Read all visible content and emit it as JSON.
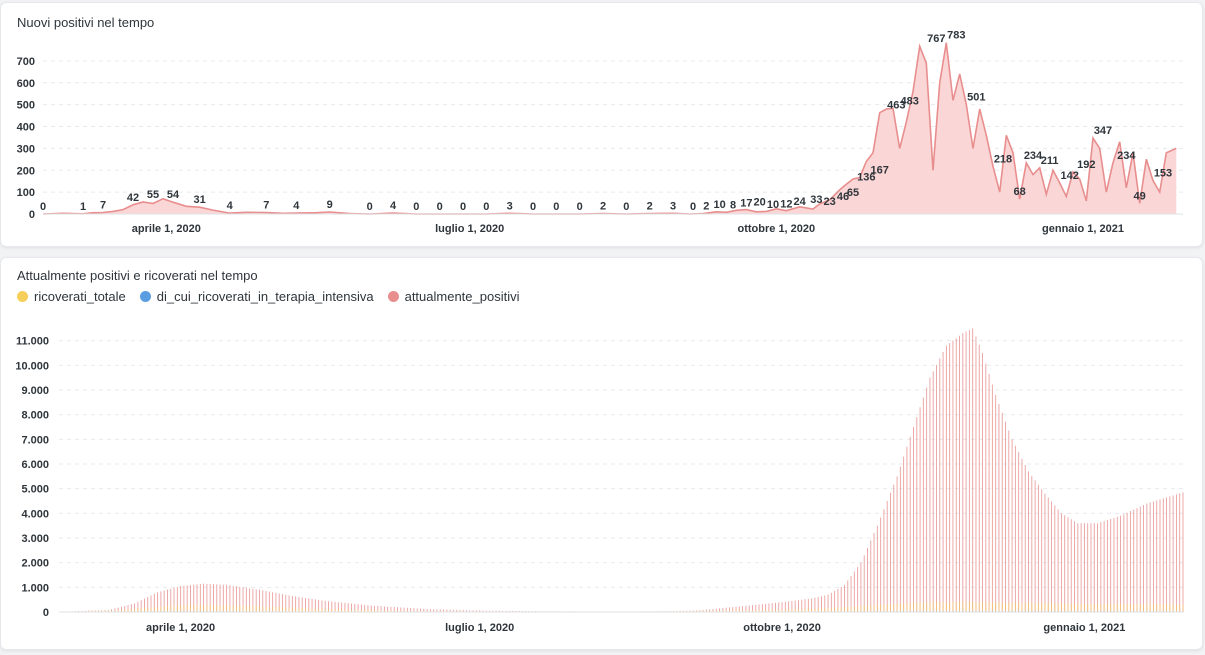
{
  "colors": {
    "positivi_line": "#e88e8e",
    "positivi_fill": "#fad6d6",
    "ricoverati": "#f5cf5a",
    "intensiva": "#5a9de0",
    "attualmente": "#e88e8e"
  },
  "chart_data": [
    {
      "type": "area",
      "title": "Nuovi positivi nel tempo",
      "xlabel": "",
      "ylabel": "",
      "ylim": [
        0,
        800
      ],
      "yticks": [
        0,
        100,
        200,
        300,
        400,
        500,
        600,
        700
      ],
      "xlim": [
        "2020-02-24",
        "2021-01-31"
      ],
      "xticks": [
        {
          "date": "2020-04-01",
          "label": "aprile 1, 2020"
        },
        {
          "date": "2020-07-01",
          "label": "luglio 1, 2020"
        },
        {
          "date": "2020-10-01",
          "label": "ottobre 1, 2020"
        },
        {
          "date": "2021-01-01",
          "label": "gennaio 1, 2021"
        }
      ],
      "series": [
        {
          "points": [
            [
              "2020-02-24",
              0
            ],
            [
              "2020-03-01",
              3
            ],
            [
              "2020-03-07",
              1
            ],
            [
              "2020-03-10",
              6
            ],
            [
              "2020-03-13",
              7
            ],
            [
              "2020-03-16",
              12
            ],
            [
              "2020-03-19",
              20
            ],
            [
              "2020-03-22",
              42
            ],
            [
              "2020-03-25",
              55
            ],
            [
              "2020-03-28",
              48
            ],
            [
              "2020-03-31",
              70
            ],
            [
              "2020-04-03",
              54
            ],
            [
              "2020-04-07",
              35
            ],
            [
              "2020-04-11",
              31
            ],
            [
              "2020-04-15",
              18
            ],
            [
              "2020-04-20",
              4
            ],
            [
              "2020-04-25",
              8
            ],
            [
              "2020-05-01",
              7
            ],
            [
              "2020-05-06",
              3
            ],
            [
              "2020-05-10",
              4
            ],
            [
              "2020-05-16",
              6
            ],
            [
              "2020-05-20",
              9
            ],
            [
              "2020-05-26",
              2
            ],
            [
              "2020-06-01",
              0
            ],
            [
              "2020-06-08",
              4
            ],
            [
              "2020-06-15",
              0
            ],
            [
              "2020-06-22",
              0
            ],
            [
              "2020-06-29",
              0
            ],
            [
              "2020-07-06",
              0
            ],
            [
              "2020-07-13",
              3
            ],
            [
              "2020-07-20",
              0
            ],
            [
              "2020-07-27",
              0
            ],
            [
              "2020-08-03",
              0
            ],
            [
              "2020-08-10",
              2
            ],
            [
              "2020-08-17",
              0
            ],
            [
              "2020-08-24",
              2
            ],
            [
              "2020-08-31",
              3
            ],
            [
              "2020-09-05",
              0
            ],
            [
              "2020-09-09",
              2
            ],
            [
              "2020-09-13",
              10
            ],
            [
              "2020-09-16",
              8
            ],
            [
              "2020-09-19",
              17
            ],
            [
              "2020-09-22",
              20
            ],
            [
              "2020-09-25",
              10
            ],
            [
              "2020-09-28",
              12
            ],
            [
              "2020-10-01",
              24
            ],
            [
              "2020-10-04",
              15
            ],
            [
              "2020-10-08",
              33
            ],
            [
              "2020-10-12",
              23
            ],
            [
              "2020-10-14",
              46
            ],
            [
              "2020-10-17",
              65
            ],
            [
              "2020-10-20",
              110
            ],
            [
              "2020-10-22",
              136
            ],
            [
              "2020-10-24",
              160
            ],
            [
              "2020-10-26",
              167
            ],
            [
              "2020-10-28",
              240
            ],
            [
              "2020-10-30",
              280
            ],
            [
              "2020-11-01",
              463
            ],
            [
              "2020-11-03",
              480
            ],
            [
              "2020-11-05",
              483
            ],
            [
              "2020-11-07",
              300
            ],
            [
              "2020-11-09",
              420
            ],
            [
              "2020-11-11",
              560
            ],
            [
              "2020-11-13",
              767
            ],
            [
              "2020-11-15",
              690
            ],
            [
              "2020-11-17",
              200
            ],
            [
              "2020-11-19",
              600
            ],
            [
              "2020-11-21",
              783
            ],
            [
              "2020-11-23",
              520
            ],
            [
              "2020-11-25",
              640
            ],
            [
              "2020-11-27",
              501
            ],
            [
              "2020-11-29",
              300
            ],
            [
              "2020-12-01",
              480
            ],
            [
              "2020-12-03",
              360
            ],
            [
              "2020-12-05",
              218
            ],
            [
              "2020-12-07",
              100
            ],
            [
              "2020-12-09",
              360
            ],
            [
              "2020-12-11",
              280
            ],
            [
              "2020-12-13",
              68
            ],
            [
              "2020-12-15",
              234
            ],
            [
              "2020-12-17",
              180
            ],
            [
              "2020-12-19",
              211
            ],
            [
              "2020-12-21",
              90
            ],
            [
              "2020-12-23",
              200
            ],
            [
              "2020-12-25",
              142
            ],
            [
              "2020-12-27",
              80
            ],
            [
              "2020-12-29",
              192
            ],
            [
              "2020-12-31",
              160
            ],
            [
              "2021-01-02",
              60
            ],
            [
              "2021-01-04",
              347
            ],
            [
              "2021-01-06",
              300
            ],
            [
              "2021-01-08",
              100
            ],
            [
              "2021-01-10",
              234
            ],
            [
              "2021-01-12",
              330
            ],
            [
              "2021-01-14",
              120
            ],
            [
              "2021-01-16",
              280
            ],
            [
              "2021-01-18",
              49
            ],
            [
              "2021-01-20",
              250
            ],
            [
              "2021-01-22",
              153
            ],
            [
              "2021-01-24",
              100
            ],
            [
              "2021-01-26",
              280
            ],
            [
              "2021-01-29",
              300
            ]
          ]
        }
      ],
      "data_labels": [
        [
          "2020-02-24",
          0,
          "0"
        ],
        [
          "2020-03-07",
          1,
          "1"
        ],
        [
          "2020-03-13",
          7,
          "7"
        ],
        [
          "2020-03-22",
          42,
          "42"
        ],
        [
          "2020-03-28",
          55,
          "55"
        ],
        [
          "2020-04-03",
          54,
          "54"
        ],
        [
          "2020-04-11",
          31,
          "31"
        ],
        [
          "2020-04-20",
          4,
          "4"
        ],
        [
          "2020-05-01",
          7,
          "7"
        ],
        [
          "2020-05-10",
          4,
          "4"
        ],
        [
          "2020-05-20",
          9,
          "9"
        ],
        [
          "2020-06-01",
          0,
          "0"
        ],
        [
          "2020-06-08",
          4,
          "4"
        ],
        [
          "2020-06-15",
          0,
          "0"
        ],
        [
          "2020-06-22",
          0,
          "0"
        ],
        [
          "2020-06-29",
          0,
          "0"
        ],
        [
          "2020-07-06",
          0,
          "0"
        ],
        [
          "2020-07-13",
          3,
          "3"
        ],
        [
          "2020-07-20",
          0,
          "0"
        ],
        [
          "2020-07-27",
          0,
          "0"
        ],
        [
          "2020-08-03",
          0,
          "0"
        ],
        [
          "2020-08-10",
          2,
          "2"
        ],
        [
          "2020-08-17",
          0,
          "0"
        ],
        [
          "2020-08-24",
          2,
          "2"
        ],
        [
          "2020-08-31",
          3,
          "3"
        ],
        [
          "2020-09-06",
          0,
          "0"
        ],
        [
          "2020-09-10",
          2,
          "2"
        ],
        [
          "2020-09-14",
          10,
          "10"
        ],
        [
          "2020-09-18",
          8,
          "8"
        ],
        [
          "2020-09-22",
          17,
          "17"
        ],
        [
          "2020-09-26",
          20,
          "20"
        ],
        [
          "2020-09-30",
          10,
          "10"
        ],
        [
          "2020-10-04",
          12,
          "12"
        ],
        [
          "2020-10-08",
          24,
          "24"
        ],
        [
          "2020-10-13",
          33,
          "33"
        ],
        [
          "2020-10-17",
          23,
          "23"
        ],
        [
          "2020-10-21",
          46,
          "46"
        ],
        [
          "2020-10-24",
          65,
          "65"
        ],
        [
          "2020-10-28",
          136,
          "136"
        ],
        [
          "2020-11-01",
          167,
          "167"
        ],
        [
          "2020-11-06",
          463,
          "463"
        ],
        [
          "2020-11-10",
          483,
          "483"
        ],
        [
          "2020-11-18",
          767,
          "767"
        ],
        [
          "2020-11-24",
          783,
          "783"
        ],
        [
          "2020-11-30",
          501,
          "501"
        ],
        [
          "2020-12-08",
          218,
          "218"
        ],
        [
          "2020-12-13",
          68,
          "68"
        ],
        [
          "2020-12-17",
          234,
          "234"
        ],
        [
          "2020-12-22",
          211,
          "211"
        ],
        [
          "2020-12-28",
          142,
          "142"
        ],
        [
          "2021-01-02",
          192,
          "192"
        ],
        [
          "2021-01-07",
          347,
          "347"
        ],
        [
          "2021-01-14",
          234,
          "234"
        ],
        [
          "2021-01-18",
          49,
          "49"
        ],
        [
          "2021-01-25",
          153,
          "153"
        ]
      ]
    },
    {
      "type": "bar",
      "title": "Attualmente positivi e ricoverati nel tempo",
      "xlabel": "",
      "ylabel": "",
      "ylim": [
        0,
        12000
      ],
      "yticks": [
        {
          "value": 0,
          "label": "0"
        },
        {
          "value": 1000,
          "label": "1.000"
        },
        {
          "value": 2000,
          "label": "2.000"
        },
        {
          "value": 3000,
          "label": "3.000"
        },
        {
          "value": 4000,
          "label": "4.000"
        },
        {
          "value": 5000,
          "label": "5.000"
        },
        {
          "value": 6000,
          "label": "6.000"
        },
        {
          "value": 7000,
          "label": "7.000"
        },
        {
          "value": 8000,
          "label": "8.000"
        },
        {
          "value": 9000,
          "label": "9.000"
        },
        {
          "value": 10000,
          "label": "10.000"
        },
        {
          "value": 11000,
          "label": "11.000"
        }
      ],
      "xlim": [
        "2020-02-24",
        "2021-01-31"
      ],
      "xticks": [
        {
          "date": "2020-04-01",
          "label": "aprile 1, 2020"
        },
        {
          "date": "2020-07-01",
          "label": "luglio 1, 2020"
        },
        {
          "date": "2020-10-01",
          "label": "ottobre 1, 2020"
        },
        {
          "date": "2021-01-01",
          "label": "gennaio 1, 2021"
        }
      ],
      "legend_position": "top-left",
      "series": [
        {
          "name": "ricoverati_totale",
          "points": [
            [
              "2020-02-24",
              0
            ],
            [
              "2020-03-15",
              80
            ],
            [
              "2020-03-28",
              250
            ],
            [
              "2020-04-10",
              300
            ],
            [
              "2020-04-25",
              230
            ],
            [
              "2020-05-15",
              120
            ],
            [
              "2020-06-10",
              40
            ],
            [
              "2020-07-15",
              15
            ],
            [
              "2020-08-20",
              20
            ],
            [
              "2020-09-15",
              60
            ],
            [
              "2020-10-10",
              120
            ],
            [
              "2020-10-25",
              250
            ],
            [
              "2020-11-10",
              380
            ],
            [
              "2020-11-25",
              420
            ],
            [
              "2020-12-10",
              380
            ],
            [
              "2020-12-31",
              330
            ],
            [
              "2021-01-31",
              310
            ]
          ]
        },
        {
          "name": "di_cui_ricoverati_in_terapia_intensiva",
          "points": [
            [
              "2020-02-24",
              0
            ],
            [
              "2020-03-28",
              40
            ],
            [
              "2020-04-20",
              30
            ],
            [
              "2020-06-01",
              5
            ],
            [
              "2020-09-15",
              5
            ],
            [
              "2020-11-20",
              45
            ],
            [
              "2021-01-31",
              30
            ]
          ]
        },
        {
          "name": "attualmente_positivi",
          "points": [
            [
              "2020-02-24",
              0
            ],
            [
              "2020-03-01",
              40
            ],
            [
              "2020-03-10",
              80
            ],
            [
              "2020-03-18",
              350
            ],
            [
              "2020-03-25",
              800
            ],
            [
              "2020-04-01",
              1050
            ],
            [
              "2020-04-08",
              1150
            ],
            [
              "2020-04-15",
              1100
            ],
            [
              "2020-04-25",
              900
            ],
            [
              "2020-05-05",
              650
            ],
            [
              "2020-05-15",
              450
            ],
            [
              "2020-05-30",
              250
            ],
            [
              "2020-06-15",
              120
            ],
            [
              "2020-07-01",
              60
            ],
            [
              "2020-07-20",
              30
            ],
            [
              "2020-08-10",
              20
            ],
            [
              "2020-08-25",
              30
            ],
            [
              "2020-09-05",
              60
            ],
            [
              "2020-09-20",
              250
            ],
            [
              "2020-10-01",
              400
            ],
            [
              "2020-10-10",
              550
            ],
            [
              "2020-10-15",
              700
            ],
            [
              "2020-10-20",
              1100
            ],
            [
              "2020-10-25",
              2000
            ],
            [
              "2020-10-30",
              3500
            ],
            [
              "2020-11-05",
              5500
            ],
            [
              "2020-11-10",
              7500
            ],
            [
              "2020-11-15",
              9500
            ],
            [
              "2020-11-20",
              10800
            ],
            [
              "2020-11-25",
              11300
            ],
            [
              "2020-11-28",
              11500
            ],
            [
              "2020-12-01",
              10500
            ],
            [
              "2020-12-05",
              8800
            ],
            [
              "2020-12-10",
              7000
            ],
            [
              "2020-12-15",
              5700
            ],
            [
              "2020-12-20",
              4800
            ],
            [
              "2020-12-25",
              4000
            ],
            [
              "2020-12-30",
              3600
            ],
            [
              "2021-01-05",
              3600
            ],
            [
              "2021-01-12",
              3900
            ],
            [
              "2021-01-20",
              4400
            ],
            [
              "2021-01-31",
              4850
            ]
          ]
        }
      ]
    }
  ]
}
